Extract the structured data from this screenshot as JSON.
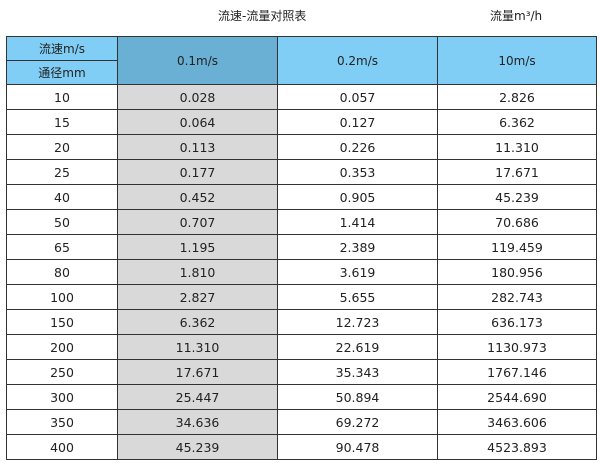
{
  "title": "流速-流量对照表",
  "unit_label": "流量m³/h",
  "header": {
    "velocity_label": "流速m/s",
    "diameter_label": "通径mm",
    "columns": [
      "0.1m/s",
      "0.2m/s",
      "10m/s"
    ]
  },
  "colors": {
    "header": "#80cef5",
    "header_highlight": "#6aafd4",
    "highlight_column": "#d9d9d9"
  },
  "rows": [
    {
      "dn": "10",
      "v": [
        "0.028",
        "0.057",
        "2.826"
      ]
    },
    {
      "dn": "15",
      "v": [
        "0.064",
        "0.127",
        "6.362"
      ]
    },
    {
      "dn": "20",
      "v": [
        "0.113",
        "0.226",
        "11.310"
      ]
    },
    {
      "dn": "25",
      "v": [
        "0.177",
        "0.353",
        "17.671"
      ]
    },
    {
      "dn": "40",
      "v": [
        "0.452",
        "0.905",
        "45.239"
      ]
    },
    {
      "dn": "50",
      "v": [
        "0.707",
        "1.414",
        "70.686"
      ]
    },
    {
      "dn": "65",
      "v": [
        "1.195",
        "2.389",
        "119.459"
      ]
    },
    {
      "dn": "80",
      "v": [
        "1.810",
        "3.619",
        "180.956"
      ]
    },
    {
      "dn": "100",
      "v": [
        "2.827",
        "5.655",
        "282.743"
      ]
    },
    {
      "dn": "150",
      "v": [
        "6.362",
        "12.723",
        "636.173"
      ]
    },
    {
      "dn": "200",
      "v": [
        "11.310",
        "22.619",
        "1130.973"
      ]
    },
    {
      "dn": "250",
      "v": [
        "17.671",
        "35.343",
        "1767.146"
      ]
    },
    {
      "dn": "300",
      "v": [
        "25.447",
        "50.894",
        "2544.690"
      ]
    },
    {
      "dn": "350",
      "v": [
        "34.636",
        "69.272",
        "3463.606"
      ]
    },
    {
      "dn": "400",
      "v": [
        "45.239",
        "90.478",
        "4523.893"
      ]
    }
  ]
}
